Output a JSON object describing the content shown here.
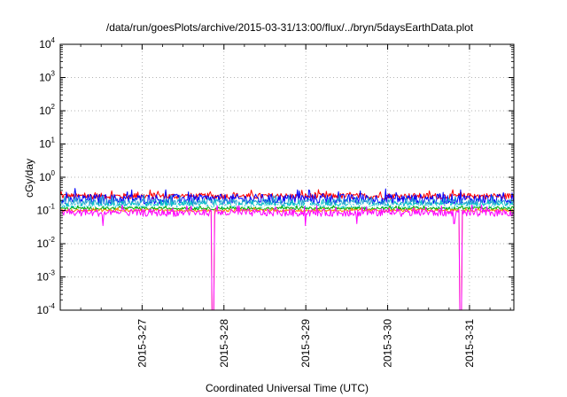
{
  "chart_data": {
    "type": "line",
    "title": "/data/run/goesPlots/archive/2015-03-31/13:00/flux/../bryn/5daysEarthData.plot",
    "xlabel": "Coordinated Universal Time (UTC)",
    "ylabel": "cGy/day",
    "y_scale": "log",
    "ylim": [
      0.0001,
      10000
    ],
    "xlim": [
      "2015-03-26 00:00",
      "2015-03-31 13:00"
    ],
    "x_ticks": [
      "2015-3-27",
      "2015-3-28",
      "2015-3-29",
      "2015-3-30",
      "2015-3-31"
    ],
    "y_ticks": [
      {
        "base": "10",
        "exp": "-4",
        "value": 0.0001
      },
      {
        "base": "10",
        "exp": "-3",
        "value": 0.001
      },
      {
        "base": "10",
        "exp": "-2",
        "value": 0.01
      },
      {
        "base": "10",
        "exp": "-1",
        "value": 0.1
      },
      {
        "base": "10",
        "exp": "0",
        "value": 1
      },
      {
        "base": "10",
        "exp": "1",
        "value": 10
      },
      {
        "base": "10",
        "exp": "2",
        "value": 100
      },
      {
        "base": "10",
        "exp": "3",
        "value": 1000
      },
      {
        "base": "10",
        "exp": "4",
        "value": 10000
      }
    ],
    "grid": true,
    "legend": "none",
    "series": [
      {
        "color": "#ff0000",
        "level": 0.27,
        "spread": 0.18
      },
      {
        "color": "#0000ff",
        "level": 0.22,
        "spread": 0.3
      },
      {
        "color": "#1fa0d0",
        "level": 0.17,
        "spread": 0.22
      },
      {
        "color": "#00c8c8",
        "level": 0.14,
        "spread": 0.16
      },
      {
        "color": "#ffffff",
        "level": 0.135,
        "spread": 0.1
      },
      {
        "color": "#00aa00",
        "level": 0.115,
        "spread": 0.08
      },
      {
        "color": "#ff8800",
        "level": 0.1,
        "spread": 0.08
      },
      {
        "color": "#ff00ff",
        "level": 0.085,
        "spread": 0.22
      }
    ],
    "dropouts": [
      {
        "start": "2015-03-27 20:30",
        "end": "2015-03-27 21:10",
        "min": 0.0001
      },
      {
        "start": "2015-03-30 21:00",
        "end": "2015-03-30 21:40",
        "min": 0.0001
      }
    ],
    "dips": [
      {
        "at": "2015-03-26 12:30",
        "value": 0.035
      },
      {
        "at": "2015-03-28 23:50",
        "value": 0.035
      },
      {
        "at": "2015-03-29 15:00",
        "value": 0.04
      },
      {
        "at": "2015-03-30 19:30",
        "value": 0.04
      }
    ]
  }
}
